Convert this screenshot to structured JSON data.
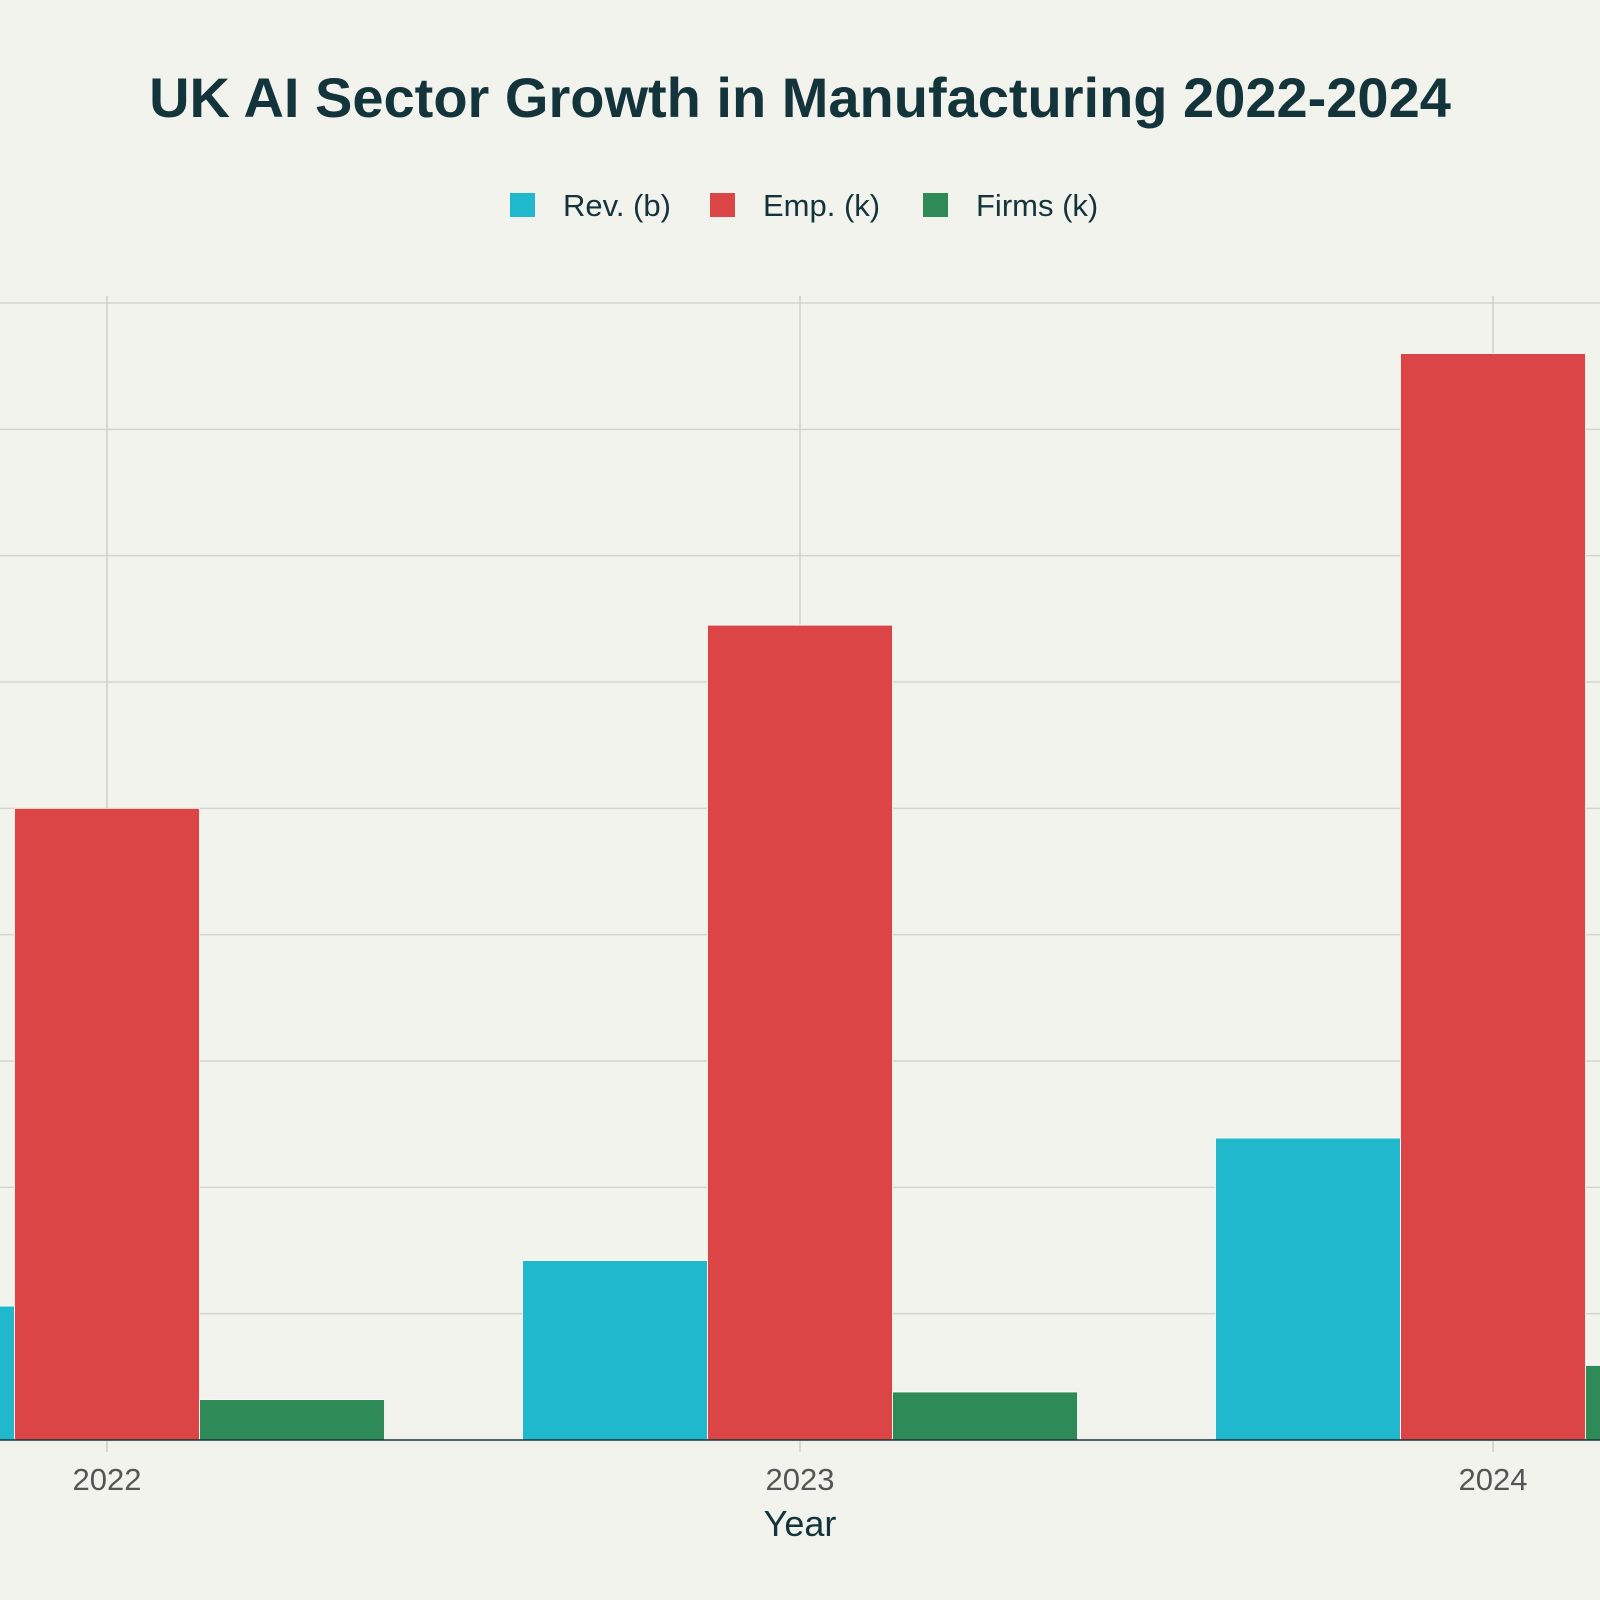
{
  "chart_data": {
    "type": "bar",
    "title": "UK AI Sector Growth in Manufacturing 2022-2024",
    "xlabel": "Year",
    "ylabel": "",
    "categories": [
      "2022",
      "2023",
      "2024"
    ],
    "series": [
      {
        "name": "Rev. (b)",
        "color": "#1fb8cd",
        "values": [
          1.06,
          1.42,
          2.39
        ]
      },
      {
        "name": "Emp. (k)",
        "color": "#db4545",
        "values": [
          5.0,
          6.45,
          8.6
        ]
      },
      {
        "name": "Firms (k)",
        "color": "#2e8b57",
        "values": [
          0.32,
          0.38,
          0.59
        ]
      }
    ],
    "ylim": [
      0,
      9
    ],
    "grid": true,
    "legend_position": "top-center"
  },
  "colors": {
    "background": "#f3f3ee",
    "title": "#13343b",
    "grid": "#d5d5d0",
    "axis": "#13343b",
    "tick": "#555555"
  }
}
